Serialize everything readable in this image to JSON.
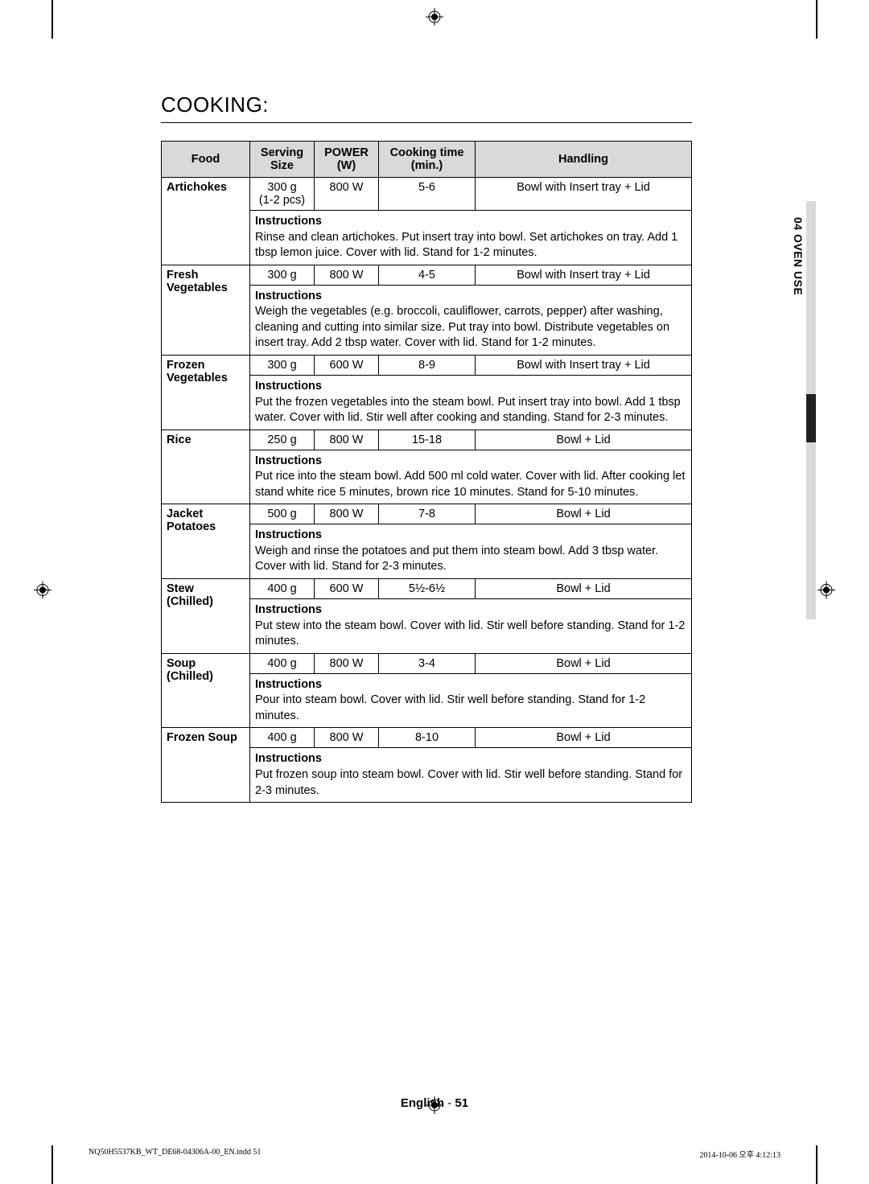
{
  "title": "COOKING:",
  "side_tab": "04  OVEN USE",
  "footer_lang": "English",
  "footer_page": "51",
  "print_file": "NQ50H5537KB_WT_DE68-04306A-00_EN.indd   51",
  "print_time": "2014-10-06   오후 4:12:13",
  "head": {
    "food": "Food",
    "serving": "Serving Size",
    "power": "POWER (W)",
    "time": "Cooking time (min.)",
    "handling": "Handling"
  },
  "rows": [
    {
      "food": "Artichokes",
      "serving": "300 g\n(1-2 pcs)",
      "power": "800 W",
      "time": "5-6",
      "handling": "Bowl with Insert tray + Lid",
      "instr_label": "Instructions",
      "instr": "Rinse and clean artichokes. Put insert tray into bowl. Set artichokes on tray. Add 1 tbsp lemon juice. Cover with lid. Stand for 1-2 minutes."
    },
    {
      "food": "Fresh Vegetables",
      "serving": "300 g",
      "power": "800 W",
      "time": "4-5",
      "handling": "Bowl with Insert tray + Lid",
      "instr_label": "Instructions",
      "instr": "Weigh the vegetables (e.g. broccoli, cauliflower, carrots, pepper) after washing, cleaning and cutting into similar size. Put tray into bowl. Distribute vegetables on insert tray. Add 2 tbsp water. Cover with lid. Stand for 1-2 minutes."
    },
    {
      "food": "Frozen Vegetables",
      "serving": "300 g",
      "power": "600 W",
      "time": "8-9",
      "handling": "Bowl with Insert tray + Lid",
      "instr_label": "Instructions",
      "instr": "Put the frozen vegetables into the steam bowl. Put insert tray into bowl. Add 1 tbsp water. Cover with lid. Stir well after cooking and standing. Stand for 2-3 minutes."
    },
    {
      "food": "Rice",
      "serving": "250 g",
      "power": "800 W",
      "time": "15-18",
      "handling": "Bowl + Lid",
      "instr_label": "Instructions",
      "instr": "Put rice into the steam bowl. Add 500 ml cold water. Cover with lid. After cooking let stand white rice 5 minutes, brown rice 10 minutes. Stand for 5-10 minutes."
    },
    {
      "food": "Jacket Potatoes",
      "serving": "500 g",
      "power": "800 W",
      "time": "7-8",
      "handling": "Bowl + Lid",
      "instr_label": "Instructions",
      "instr": "Weigh and rinse the potatoes and put them into steam bowl. Add 3 tbsp water. Cover with lid. Stand for 2-3 minutes."
    },
    {
      "food": "Stew (Chilled)",
      "serving": "400 g",
      "power": "600 W",
      "time": "5½-6½",
      "handling": "Bowl + Lid",
      "instr_label": "Instructions",
      "instr": "Put stew into the steam bowl. Cover with lid. Stir well before standing. Stand for 1-2 minutes."
    },
    {
      "food": "Soup (Chilled)",
      "serving": "400 g",
      "power": "800 W",
      "time": "3-4",
      "handling": "Bowl + Lid",
      "instr_label": "Instructions",
      "instr": "Pour into steam bowl. Cover with lid. Stir well before standing. Stand for 1-2 minutes."
    },
    {
      "food": "Frozen Soup",
      "serving": "400 g",
      "power": "800 W",
      "time": "8-10",
      "handling": "Bowl + Lid",
      "instr_label": "Instructions",
      "instr": "Put frozen soup into steam bowl. Cover with lid. Stir well before standing. Stand for 2-3 minutes."
    }
  ]
}
